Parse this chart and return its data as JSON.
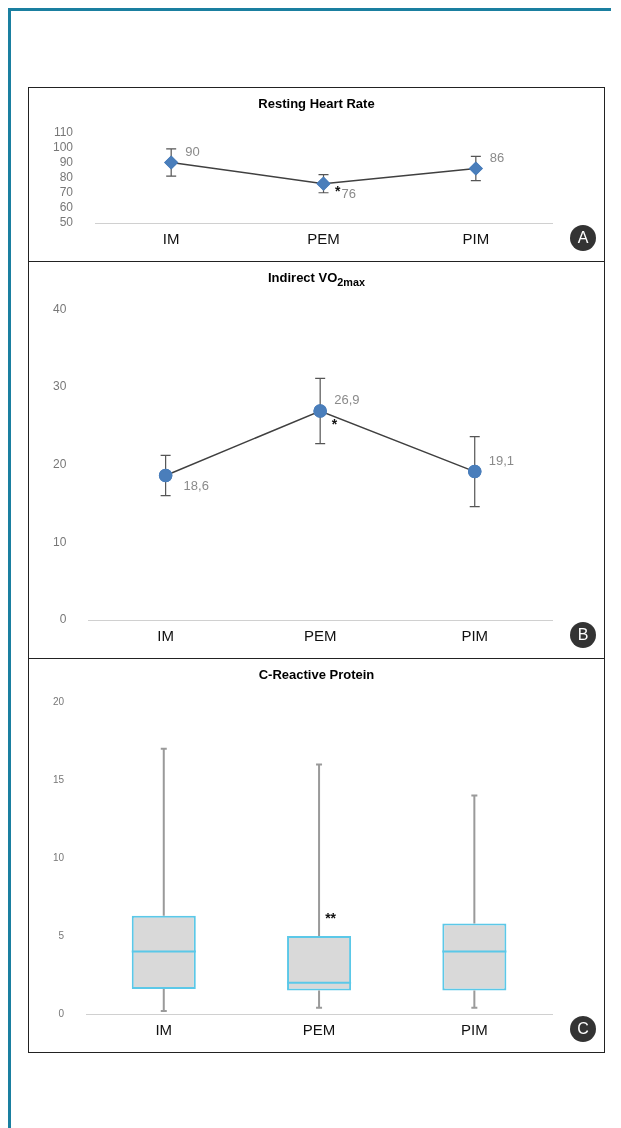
{
  "chart_data": [
    {
      "type": "line",
      "title": "Resting Heart Rate",
      "categories": [
        "IM",
        "PEM",
        "PIM"
      ],
      "values": [
        90,
        76,
        86
      ],
      "errors": [
        9,
        6,
        8
      ],
      "color": "#4a7ebb",
      "marker": "diamond",
      "data_labels": true,
      "ylim": [
        50,
        110
      ],
      "yticks": [
        50,
        60,
        70,
        80,
        90,
        100,
        110
      ],
      "grid": false,
      "annotations": [
        "A",
        {
          "text": "*",
          "x": "PEM",
          "y": 75
        }
      ]
    },
    {
      "type": "line",
      "title": "Indirect VO$_{2max}$",
      "categories": [
        "IM",
        "PEM",
        "PIM"
      ],
      "values": [
        18.6,
        26.9,
        19.1
      ],
      "value_labels": [
        "18,6",
        "26,9",
        "19,1"
      ],
      "errors": [
        2.6,
        4.2,
        4.5
      ],
      "color": "#4a7ebb",
      "marker": "circle",
      "ylim": [
        0,
        40
      ],
      "yticks": [
        0,
        10,
        20,
        30,
        40
      ],
      "grid": false,
      "annotations": [
        "B",
        {
          "text": "*",
          "x": "PEM",
          "y": 26
        }
      ]
    },
    {
      "type": "box",
      "title": "C-Reactive Protein",
      "categories": [
        "IM",
        "PEM",
        "PIM"
      ],
      "color": "#5bc8e8",
      "boxes": [
        {
          "low": 0.2,
          "q1": 1.6,
          "median": 4,
          "q3": 6.3,
          "high": 17
        },
        {
          "low": 0.4,
          "q1": 1.5,
          "median": 2,
          "q3": 5,
          "high": 16
        },
        {
          "low": 0.4,
          "q1": 1.5,
          "median": 4,
          "q3": 5.8,
          "high": 14
        }
      ],
      "ylim": [
        0,
        20
      ],
      "yticks": [
        0,
        5,
        10,
        15,
        20
      ],
      "grid": false,
      "annotations": [
        "C",
        {
          "text": "**",
          "x": "PEM",
          "y": 6.5
        }
      ]
    }
  ]
}
